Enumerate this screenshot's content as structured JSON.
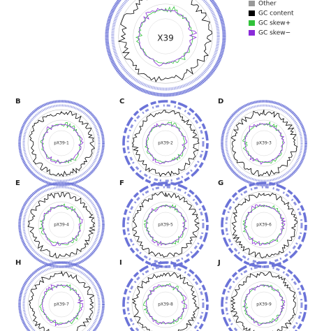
{
  "legend": [
    "Other",
    "GC content",
    "GC skew+",
    "GC skew−"
  ],
  "main": {
    "label": "X39"
  },
  "panels": [
    {
      "letter": "B",
      "name": "pX39-1"
    },
    {
      "letter": "C",
      "name": "pX39-2"
    },
    {
      "letter": "D",
      "name": "pX39-3"
    },
    {
      "letter": "E",
      "name": "pX39-4"
    },
    {
      "letter": "F",
      "name": "pX39-5"
    },
    {
      "letter": "G",
      "name": "pX39-6"
    },
    {
      "letter": "H",
      "name": "pX39-7"
    },
    {
      "letter": "I",
      "name": "pX39-8"
    },
    {
      "letter": "J",
      "name": "pX39-9"
    }
  ]
}
